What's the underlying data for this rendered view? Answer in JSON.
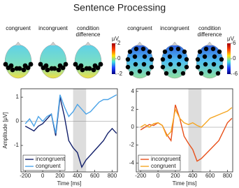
{
  "title": "Sentence Processing",
  "topographies": [
    {
      "labels": [
        "congruent",
        "incongruent",
        "condition difference"
      ],
      "colorbar": {
        "range": [
          -2,
          2
        ],
        "ticks": [
          2,
          0,
          -2
        ],
        "unit": "μV"
      }
    },
    {
      "labels": [
        "congruent",
        "incongruent",
        "condition difference"
      ],
      "colorbar": {
        "range": [
          -6,
          6
        ],
        "ticks": [
          6,
          0,
          -6
        ],
        "unit": "μV"
      }
    }
  ],
  "chart_data": [
    {
      "type": "line",
      "xlabel": "Time [ms]",
      "ylabel": "Amplitude [μV]",
      "x": [
        -200,
        -150,
        -100,
        -50,
        0,
        50,
        100,
        150,
        200,
        250,
        300,
        350,
        400,
        450,
        500,
        550,
        600,
        650,
        700,
        750,
        800,
        850
      ],
      "series": [
        {
          "name": "incongruent",
          "color": "#13206b",
          "values": [
            -0.2,
            -0.3,
            -0.4,
            -0.2,
            -0.1,
            0.1,
            0.3,
            -0.6,
            1.0,
            0.2,
            -0.8,
            -1.1,
            -1.3,
            -1.9,
            -1.6,
            -1.4,
            -1.2,
            -1.0,
            -0.8,
            -0.5,
            -0.3,
            -0.5
          ]
        },
        {
          "name": "congruent",
          "color": "#4aa3e8",
          "values": [
            -0.1,
            0.1,
            -0.2,
            0.2,
            0.0,
            0.2,
            0.3,
            -0.5,
            1.1,
            0.6,
            0.2,
            0.4,
            0.7,
            0.5,
            0.3,
            0.4,
            0.6,
            0.8,
            0.9,
            0.9,
            1.0,
            1.1
          ]
        }
      ],
      "xlim": [
        -250,
        860
      ],
      "ylim": [
        -2.1,
        1.35
      ],
      "xticks": [
        -200,
        0,
        200,
        400,
        600,
        800
      ],
      "yticks": [
        1,
        0,
        -1
      ],
      "highlight": [
        350,
        500
      ],
      "legend": "lower left"
    },
    {
      "type": "line",
      "xlabel": "Time [ms]",
      "x": [
        -200,
        -150,
        -100,
        -50,
        0,
        50,
        100,
        150,
        200,
        250,
        300,
        350,
        400,
        450,
        500,
        550,
        600,
        650,
        700,
        750,
        800,
        850
      ],
      "series": [
        {
          "name": "incongruent",
          "color": "#e8501a",
          "values": [
            -0.3,
            0.0,
            0.3,
            0.2,
            0.5,
            0.2,
            -0.8,
            -1.5,
            2.5,
            1.0,
            -1.0,
            -1.8,
            -2.5,
            -3.8,
            -3.5,
            -3.0,
            -2.5,
            -2.0,
            -1.5,
            -0.5,
            0.5,
            1.0
          ]
        },
        {
          "name": "congruent",
          "color": "#f5a623",
          "values": [
            0.0,
            0.3,
            0.0,
            0.4,
            0.5,
            0.2,
            -1.0,
            -0.5,
            2.0,
            1.0,
            0.5,
            0.3,
            0.5,
            0.2,
            0.0,
            0.5,
            1.0,
            1.2,
            1.4,
            1.6,
            1.8,
            2.2
          ]
        }
      ],
      "xlim": [
        -250,
        860
      ],
      "ylim": [
        -5,
        4.3
      ],
      "xticks": [
        -200,
        0,
        200,
        400,
        600,
        800
      ],
      "yticks": [
        4,
        2,
        0,
        -2,
        -4
      ],
      "highlight": [
        350,
        500
      ],
      "legend": "lower left"
    }
  ]
}
